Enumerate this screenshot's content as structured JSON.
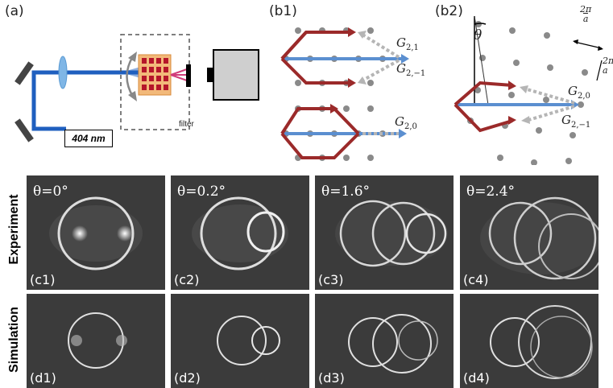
{
  "panel_a": {
    "label": "(a)",
    "laser": "404 nm",
    "filter": "filter"
  },
  "panel_b1": {
    "label": "(b1)",
    "g21": "G",
    "g21_sub": "2,1",
    "g2m1": "G",
    "g2m1_sub": "2,−1",
    "g20": "G",
    "g20_sub": "2,0"
  },
  "panel_b2": {
    "label": "(b2)",
    "theta": "θ",
    "g20": "G",
    "g20_sub": "2,0",
    "g2m1": "G",
    "g2m1_sub": "2,−1",
    "frac1_num": "2π",
    "frac1_den": "a",
    "frac2_num": "2π",
    "frac2_den": "a"
  },
  "rows": {
    "experiment": "Experiment",
    "simulation": "Simulation"
  },
  "experiment": [
    {
      "theta": "θ=0°",
      "label": "(c1)"
    },
    {
      "theta": "θ=0.2°",
      "label": "(c2)"
    },
    {
      "theta": "θ=1.6°",
      "label": "(c3)"
    },
    {
      "theta": "θ=2.4°",
      "label": "(c4)"
    }
  ],
  "simulation": [
    {
      "label": "(d1)"
    },
    {
      "label": "(d2)"
    },
    {
      "label": "(d3)"
    },
    {
      "label": "(d4)"
    }
  ],
  "colors": {
    "beam_blue": "#1f5fbf",
    "arrow_red": "#9b2a2a",
    "arrow_blue": "#5b8fd0",
    "dot_gray": "#8a8a8a"
  }
}
